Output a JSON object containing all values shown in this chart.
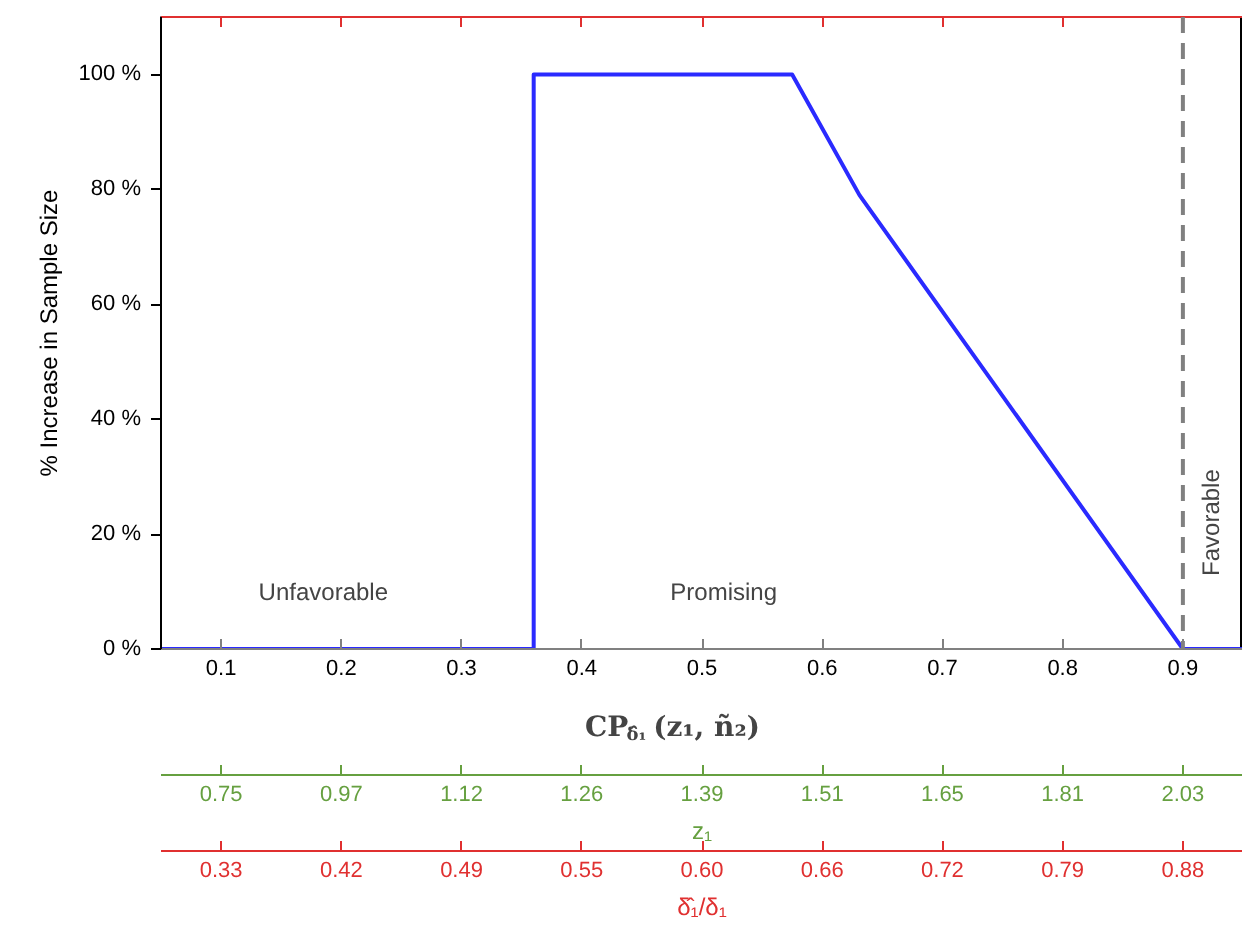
{
  "chart_data": {
    "type": "line",
    "xlabel": "CP$_{δ̂₁}$(z₁, ñ₂)",
    "ylabel": "% Increase in Sample Size",
    "x": [
      0.05,
      0.36,
      0.36,
      0.575,
      0.631,
      0.9,
      0.95
    ],
    "series": [
      {
        "color": "#2a2aff",
        "values": [
          0,
          0,
          100,
          100,
          79,
          0,
          0
        ]
      }
    ],
    "xlim": [
      0.05,
      0.95
    ],
    "xticks": [
      0.1,
      0.2,
      0.3,
      0.4,
      0.5,
      0.6,
      0.7,
      0.8,
      0.9
    ],
    "ylim": [
      0,
      110
    ],
    "yticks": [
      {
        "value": 0,
        "label": "0 %"
      },
      {
        "value": 20,
        "label": "20 %"
      },
      {
        "value": 40,
        "label": "40 %"
      },
      {
        "value": 60,
        "label": "60 %"
      },
      {
        "value": 80,
        "label": "80 %"
      },
      {
        "value": 100,
        "label": "100 %"
      }
    ],
    "ref_lines": [
      {
        "axis": "x",
        "value": 0.9,
        "color": "#808080",
        "line_style": "dashed"
      }
    ],
    "annotations": [
      "0.75 0.97 1.12 1.26 1.39 1.51 1.65 1.81 2.03",
      "z₁",
      "0.33 0.42 0.49 0.55 0.60 0.66 0.72 0.79 0.88",
      "δ̂₁/δ₁",
      "Unfavorable",
      "Promising",
      "Favorable"
    ],
    "grid": false
  }
}
